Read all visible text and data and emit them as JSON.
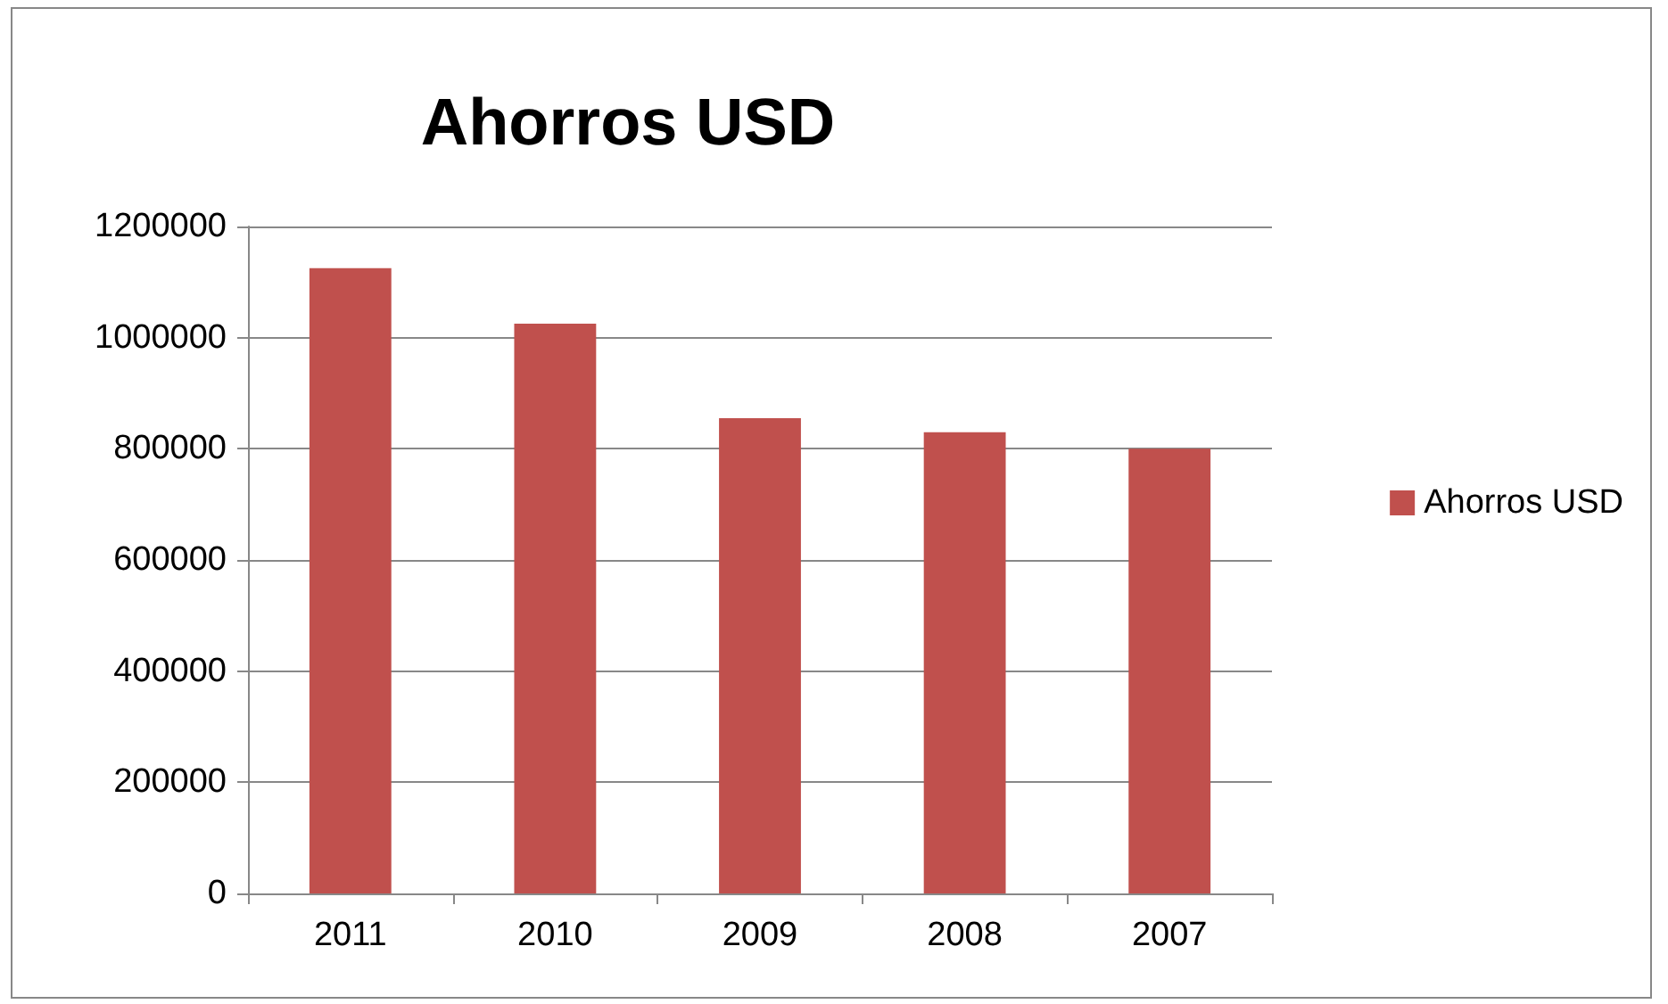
{
  "chart_data": {
    "type": "bar",
    "title": "Ahorros USD",
    "categories": [
      "2011",
      "2010",
      "2009",
      "2008",
      "2007"
    ],
    "series": [
      {
        "name": "Ahorros USD",
        "color": "#c0504d",
        "values": [
          1125000,
          1025000,
          855000,
          830000,
          800000
        ]
      }
    ],
    "ylim": [
      0,
      1200000
    ],
    "yticks": [
      0,
      200000,
      400000,
      600000,
      800000,
      1000000,
      1200000
    ],
    "grid": "y",
    "legend": "right"
  }
}
